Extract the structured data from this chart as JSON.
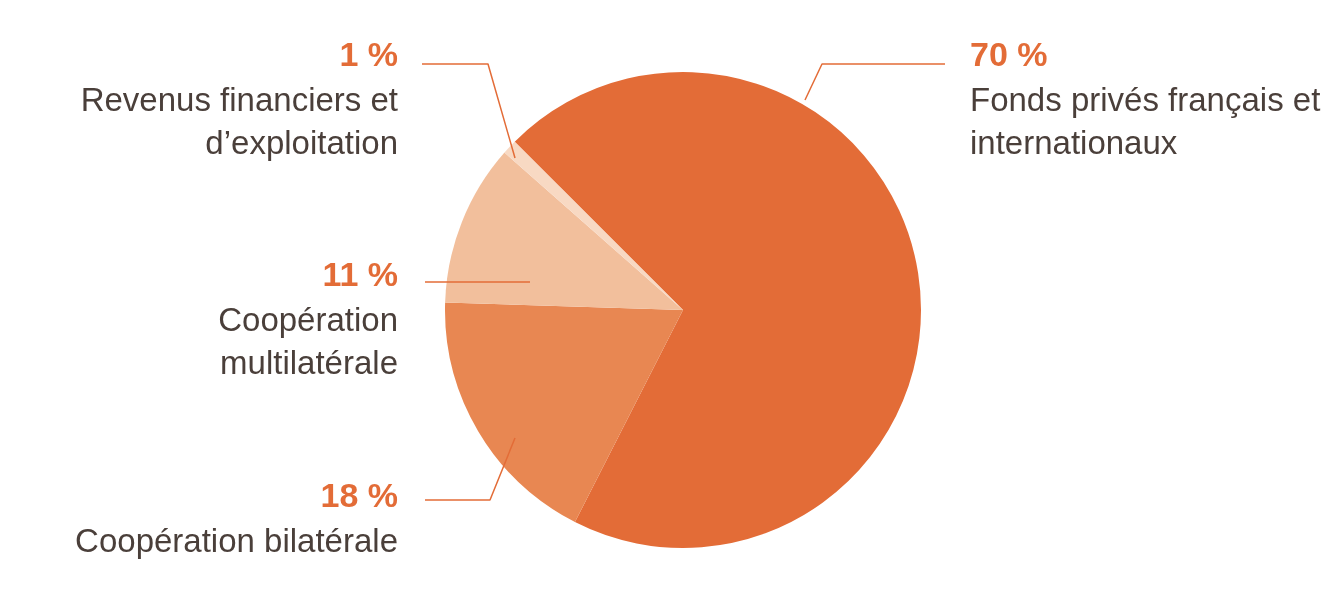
{
  "chart_data": {
    "type": "pie",
    "categories": [
      "Fonds privés français et internationaux",
      "Coopération bilatérale",
      "Coopération multilatérale",
      "Revenus financiers et d’exploitation"
    ],
    "values": [
      70,
      18,
      11,
      1
    ],
    "value_labels": [
      "70 %",
      "18 %",
      "11 %",
      "1 %"
    ],
    "colors": [
      "#e36c37",
      "#e88752",
      "#f2bf9c",
      "#f8d9c3"
    ],
    "legend": false
  }
}
